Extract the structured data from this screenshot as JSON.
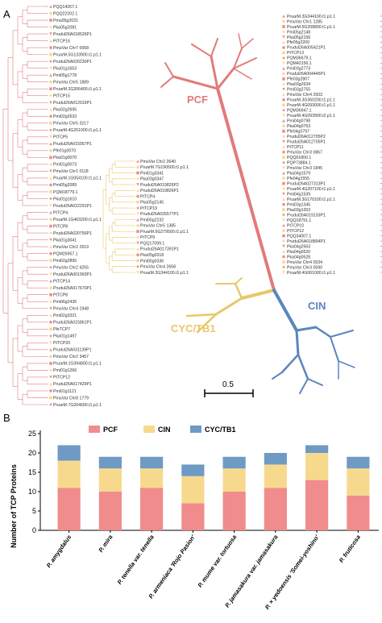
{
  "panels": {
    "a_label": "A",
    "b_label": "B"
  },
  "colors": {
    "pcf": "#f08c8c",
    "cin": "#f7d98e",
    "cyc": "#6f9ac4",
    "pcf_branch": "#e27a7a",
    "cin_branch": "#5b86bd",
    "cyc_branch": "#e8c86a"
  },
  "tree": {
    "clade_pcf": "PCF",
    "clade_cin": "CIN",
    "clade_cyc": "CYC/TB1",
    "scale_bar_value": "0.5",
    "left_leaves": [
      "PQQ14267.1",
      "PQQ22202.1",
      "Pmu05g2031",
      "Pka05g2081",
      "Prudul26A018526P1",
      "PtTCP16",
      "PmuVar Chr7 0068",
      "PruarM.5G133900.t1.p1.1",
      "Prudul26A020230P1",
      "Pka01g1653",
      "Pmi05g1778",
      "PmuVar Chr5 1889",
      "PruarM.2G306400.t1.p1.1",
      "PtTCP15",
      "Prudul26A012015P1",
      "Pka02g2695",
      "Pmi02g2633",
      "PmuVar Chr5 3217",
      "PruarM.4G261000.t1.p1.1",
      "PtTCP5",
      "Prudul26A015957P1",
      "Pfe01g0070",
      "Pka01g0070",
      "Pmi01g0073",
      "PmuVar Chr1 0118",
      "PruarM.1G054100.t1.p1.1",
      "Pmi05g2089",
      "PQM18779.1",
      "Pka01g1610",
      "Prudul26A022291P1",
      "PtTCP4",
      "PruarM.1G463200.t1.p1.1",
      "PtTCP8",
      "Prudul26A020756P1",
      "Pka01g3041",
      "PmuVar Chr2 2919",
      "PQM26957.1",
      "Pmi02g2895",
      "PmuVar Chr2 4255",
      "Prudul26A001993P1",
      "PtTCP14",
      "Prudul26A017670P1",
      "PtTCP8",
      "Pmi06g2436",
      "PmuVar Chr4 1948",
      "Pmi02g3321",
      "Prudul26A015861P1",
      "PfeTCP7",
      "Pka01g1497",
      "PtTCP20",
      "Prudul26A031139P1",
      "PmuVar Chr2 3457",
      "PruarM.1G394800.t1.p1.1",
      "Pmi01g1266",
      "PtTCP12",
      "Prudul26A017429P1",
      "Pmi01g1121",
      "PmuVar Chr8 1779",
      "PruarM.7G204600.t1.p1.1"
    ],
    "right_leaves": [
      "PruarM.3G344100.t1.p1.1",
      "PmuVar Chr1 1285",
      "PruarM.5G208800.t1.p1.1",
      "Pmi05g2148",
      "Pka05g2156",
      "Pfe05g2200",
      "Prudul26A005421P1",
      "PtTCP13",
      "PQM36679.1",
      "PQM42156.1",
      "Pmi03g2773",
      "Prudul26A004445P1",
      "Pfe03g2807",
      "Pka03g2634",
      "Pmi03g2755",
      "PmuVar Chr4 2503",
      "PruarM.3G360200.t1.p1.1",
      "PruarM.4G093000.t1.p1.1",
      "PQM36947.1",
      "PruarM.4G093900.t2.p1.1",
      "Pmi04g0798",
      "Pka04g0763",
      "Pfe04g0797",
      "Prudul26A012705P2",
      "Prudul26A012705P1",
      "PtTCP11",
      "PmuVar Chr3 0867",
      "PQQ01800.1",
      "PQP73884.1",
      "PmuVar Chr3 1845",
      "Pka04g1579",
      "Pfe04g1555",
      "Prudul26A027313P1",
      "PruarM.4G207100.t1.p1.1",
      "Pmi04g1539",
      "PruarM.3G170100.t1.p1.1",
      "Pmi03g1345",
      "Pka03g1263",
      "Prudul26A019133P1",
      "PQQ18791.1",
      "PtTCP10",
      "PtTCP12",
      "PQQ34007.1",
      "Prudul26A018894P1",
      "Pka04g2563",
      "Pka04g0520",
      "Pka04g0528",
      "PmuVar Chr4 0534",
      "PmuVar Chr3 0590",
      "PruarM.4G061000.t1.p1.1"
    ],
    "middle_leaves": [
      "PmuVar Chr2 2640",
      "PruarM.7G190500.t1.p1.1",
      "Pmi01g3341",
      "Pka03g0347",
      "Prudul26A019826P2",
      "Prudul26A019826P1",
      "PtTCP4",
      "Pka05g2145",
      "PtTCP19",
      "Prudul26A026577P1",
      "Pmi05g2232",
      "PmuVar Chr5 1385",
      "PruarM.5G279500.t1.p1.1",
      "PtTCP9",
      "PQQ17099.1",
      "Prudul26A017391P1",
      "Pka05g0318",
      "Pmi05g0336",
      "PmuVar Chr4 2658",
      "PruarM.3G344100.t1.p1.1"
    ]
  },
  "chart_data": {
    "type": "bar",
    "stacked": true,
    "categories": [
      "P. amygdalus",
      "P. mira",
      "P. tenella var. tenella",
      "P. armeniaca 'Rojo Pasion'",
      "P. mume var. tortuosa",
      "P. jamasakura var. jamasakura",
      "P. × yedoensis 'Somei-yoshino'",
      "P. fruticosa"
    ],
    "series": [
      {
        "name": "PCF",
        "values": [
          11,
          10,
          11,
          7,
          10,
          11,
          13,
          9
        ]
      },
      {
        "name": "CIN",
        "values": [
          7,
          6,
          5,
          7,
          6,
          6,
          7,
          7
        ]
      },
      {
        "name": "CYC/TB1",
        "values": [
          4,
          3,
          3,
          3,
          3,
          3,
          2,
          3
        ]
      }
    ],
    "ylabel": "Number of TCP Proteins",
    "ylim": [
      0,
      25
    ],
    "yticks": [
      0,
      5,
      10,
      15,
      20,
      25
    ],
    "legend_position": "top"
  }
}
